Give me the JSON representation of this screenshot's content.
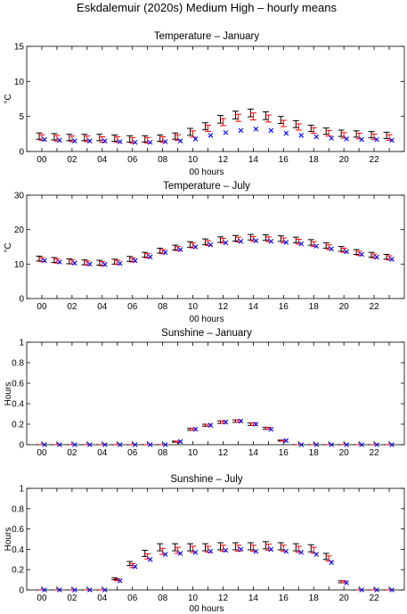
{
  "figure_title": "Eskdalemuir (2020s) Medium High – hourly means",
  "colors": {
    "series_black": "#000000",
    "series_red": "#ff0000",
    "series_blue": "#0000ff"
  },
  "chart_data": [
    {
      "type": "scatter",
      "title": "Temperature – January",
      "xlabel": "00 hours",
      "ylabel": "°C",
      "ylim": [
        0,
        15
      ],
      "yticks": [
        0,
        5,
        10,
        15
      ],
      "xlim": [
        -1,
        24
      ],
      "xticks": [
        "00",
        "02",
        "04",
        "06",
        "08",
        "10",
        "12",
        "14",
        "16",
        "18",
        "20",
        "22"
      ],
      "x": [
        0,
        1,
        2,
        3,
        4,
        5,
        6,
        7,
        8,
        9,
        10,
        11,
        12,
        13,
        14,
        15,
        16,
        17,
        18,
        19,
        20,
        21,
        22,
        23
      ],
      "series": [
        {
          "marker": "errorbar",
          "color": "#000000",
          "values": [
            2.2,
            2.1,
            2.0,
            2.0,
            2.0,
            1.9,
            1.8,
            1.8,
            1.9,
            2.2,
            2.8,
            3.6,
            4.6,
            5.2,
            5.5,
            5.1,
            4.5,
            3.9,
            3.3,
            2.9,
            2.6,
            2.5,
            2.4,
            2.3
          ],
          "error": [
            0.45,
            0.45,
            0.45,
            0.45,
            0.45,
            0.45,
            0.45,
            0.45,
            0.45,
            0.45,
            0.5,
            0.5,
            0.55,
            0.55,
            0.55,
            0.55,
            0.5,
            0.5,
            0.45,
            0.45,
            0.45,
            0.45,
            0.45,
            0.45
          ]
        },
        {
          "marker": "errorbar",
          "color": "#ff0000",
          "values": [
            2.0,
            1.9,
            1.8,
            1.8,
            1.7,
            1.7,
            1.6,
            1.6,
            1.7,
            2.0,
            2.5,
            3.3,
            4.2,
            4.8,
            5.0,
            4.7,
            4.0,
            3.5,
            3.0,
            2.6,
            2.3,
            2.2,
            2.1,
            2.0
          ],
          "error": [
            0.4,
            0.4,
            0.4,
            0.4,
            0.4,
            0.4,
            0.4,
            0.4,
            0.4,
            0.4,
            0.45,
            0.45,
            0.5,
            0.5,
            0.5,
            0.5,
            0.45,
            0.45,
            0.4,
            0.4,
            0.4,
            0.4,
            0.4,
            0.4
          ]
        },
        {
          "marker": "x",
          "color": "#0000ff",
          "values": [
            1.7,
            1.6,
            1.5,
            1.5,
            1.5,
            1.4,
            1.3,
            1.3,
            1.4,
            1.5,
            1.8,
            2.3,
            2.7,
            3.0,
            3.2,
            3.0,
            2.6,
            2.3,
            2.1,
            1.9,
            1.8,
            1.7,
            1.7,
            1.6
          ]
        }
      ]
    },
    {
      "type": "scatter",
      "title": "Temperature – July",
      "xlabel": "00 hours",
      "ylabel": "°C",
      "ylim": [
        0,
        30
      ],
      "yticks": [
        0,
        10,
        20,
        30
      ],
      "xlim": [
        -1,
        24
      ],
      "xticks": [
        "00",
        "02",
        "04",
        "06",
        "08",
        "10",
        "12",
        "14",
        "16",
        "18",
        "20",
        "22"
      ],
      "x": [
        0,
        1,
        2,
        3,
        4,
        5,
        6,
        7,
        8,
        9,
        10,
        11,
        12,
        13,
        14,
        15,
        16,
        17,
        18,
        19,
        20,
        21,
        22,
        23
      ],
      "series": [
        {
          "marker": "errorbar",
          "color": "#000000",
          "values": [
            11.6,
            11.2,
            10.8,
            10.5,
            10.4,
            10.7,
            11.5,
            12.7,
            13.9,
            14.8,
            15.7,
            16.5,
            17.1,
            17.5,
            17.8,
            17.7,
            17.4,
            17.0,
            16.3,
            15.4,
            14.4,
            13.5,
            12.7,
            12.1
          ],
          "error": [
            0.7,
            0.7,
            0.7,
            0.7,
            0.7,
            0.7,
            0.7,
            0.7,
            0.7,
            0.7,
            0.8,
            0.8,
            0.8,
            0.8,
            0.8,
            0.8,
            0.8,
            0.8,
            0.8,
            0.8,
            0.7,
            0.7,
            0.7,
            0.7
          ]
        },
        {
          "marker": "errorbar",
          "color": "#ff0000",
          "values": [
            11.3,
            10.9,
            10.6,
            10.3,
            10.1,
            10.5,
            11.2,
            12.4,
            13.6,
            14.5,
            15.4,
            16.1,
            16.8,
            17.1,
            17.3,
            17.2,
            16.9,
            16.5,
            15.8,
            14.9,
            14.0,
            13.1,
            12.3,
            11.8
          ],
          "error": [
            0.6,
            0.6,
            0.6,
            0.6,
            0.6,
            0.6,
            0.6,
            0.6,
            0.6,
            0.6,
            0.7,
            0.7,
            0.7,
            0.7,
            0.7,
            0.7,
            0.7,
            0.7,
            0.7,
            0.7,
            0.6,
            0.6,
            0.6,
            0.6
          ]
        },
        {
          "marker": "x",
          "color": "#0000ff",
          "values": [
            11.0,
            10.6,
            10.3,
            10.0,
            9.9,
            10.2,
            11.0,
            12.1,
            13.4,
            14.2,
            15.0,
            15.6,
            16.2,
            16.6,
            16.8,
            16.6,
            16.3,
            15.9,
            15.2,
            14.4,
            13.6,
            12.8,
            12.0,
            11.4
          ]
        }
      ]
    },
    {
      "type": "scatter",
      "title": "Sunshine – January",
      "xlabel": "00 hours",
      "ylabel": "Hours",
      "ylim": [
        0,
        1
      ],
      "yticks": [
        0,
        0.2,
        0.4,
        0.6,
        0.8,
        1
      ],
      "xlim": [
        -1,
        24
      ],
      "xticks": [
        "00",
        "02",
        "04",
        "06",
        "08",
        "10",
        "12",
        "14",
        "16",
        "18",
        "20",
        "22"
      ],
      "x": [
        0,
        1,
        2,
        3,
        4,
        5,
        6,
        7,
        8,
        9,
        10,
        11,
        12,
        13,
        14,
        15,
        16,
        17,
        18,
        19,
        20,
        21,
        22,
        23
      ],
      "series": [
        {
          "marker": "errorbar",
          "color": "#000000",
          "values": [
            0,
            0,
            0,
            0,
            0,
            0,
            0,
            0,
            0,
            0.03,
            0.15,
            0.19,
            0.22,
            0.23,
            0.2,
            0.16,
            0.04,
            0,
            0,
            0,
            0,
            0,
            0,
            0
          ],
          "error": [
            0,
            0,
            0,
            0,
            0,
            0,
            0,
            0,
            0,
            0.005,
            0.01,
            0.01,
            0.012,
            0.012,
            0.012,
            0.01,
            0.005,
            0,
            0,
            0,
            0,
            0,
            0,
            0
          ]
        },
        {
          "marker": "errorbar",
          "color": "#ff0000",
          "values": [
            0,
            0,
            0,
            0,
            0,
            0,
            0,
            0,
            0,
            0.03,
            0.15,
            0.19,
            0.22,
            0.23,
            0.2,
            0.16,
            0.04,
            0,
            0,
            0,
            0,
            0,
            0,
            0
          ],
          "error": [
            0,
            0,
            0,
            0,
            0,
            0,
            0,
            0,
            0,
            0.005,
            0.01,
            0.01,
            0.012,
            0.012,
            0.012,
            0.01,
            0.005,
            0,
            0,
            0,
            0,
            0,
            0,
            0
          ]
        },
        {
          "marker": "x",
          "color": "#0000ff",
          "values": [
            0,
            0,
            0,
            0,
            0,
            0,
            0,
            0,
            0,
            0.03,
            0.15,
            0.19,
            0.22,
            0.23,
            0.2,
            0.15,
            0.04,
            0,
            0,
            0,
            0,
            0,
            0,
            0
          ]
        }
      ]
    },
    {
      "type": "scatter",
      "title": "Sunshine – July",
      "xlabel": "00 hours",
      "ylabel": "Hours",
      "ylim": [
        0,
        1
      ],
      "yticks": [
        0,
        0.2,
        0.4,
        0.6,
        0.8,
        1
      ],
      "xlim": [
        -1,
        24
      ],
      "xticks": [
        "00",
        "02",
        "04",
        "06",
        "08",
        "10",
        "12",
        "14",
        "16",
        "18",
        "20",
        "22"
      ],
      "x": [
        0,
        1,
        2,
        3,
        4,
        5,
        6,
        7,
        8,
        9,
        10,
        11,
        12,
        13,
        14,
        15,
        16,
        17,
        18,
        19,
        20,
        21,
        22,
        23
      ],
      "series": [
        {
          "marker": "errorbar",
          "color": "#000000",
          "values": [
            0,
            0,
            0,
            0,
            0,
            0.11,
            0.26,
            0.36,
            0.42,
            0.42,
            0.42,
            0.42,
            0.43,
            0.43,
            0.43,
            0.44,
            0.43,
            0.42,
            0.41,
            0.33,
            0.08,
            0,
            0,
            0
          ],
          "error": [
            0,
            0,
            0,
            0,
            0,
            0.01,
            0.02,
            0.03,
            0.035,
            0.035,
            0.035,
            0.035,
            0.035,
            0.035,
            0.035,
            0.035,
            0.035,
            0.035,
            0.035,
            0.03,
            0.01,
            0,
            0,
            0
          ]
        },
        {
          "marker": "errorbar",
          "color": "#ff0000",
          "values": [
            0,
            0,
            0,
            0,
            0,
            0.1,
            0.24,
            0.33,
            0.38,
            0.39,
            0.4,
            0.4,
            0.41,
            0.41,
            0.41,
            0.42,
            0.41,
            0.4,
            0.39,
            0.31,
            0.08,
            0,
            0,
            0
          ],
          "error": [
            0,
            0,
            0,
            0,
            0,
            0.01,
            0.02,
            0.025,
            0.03,
            0.03,
            0.03,
            0.03,
            0.03,
            0.03,
            0.03,
            0.03,
            0.03,
            0.03,
            0.03,
            0.025,
            0.01,
            0,
            0,
            0
          ]
        },
        {
          "marker": "x",
          "color": "#0000ff",
          "values": [
            0,
            0,
            0,
            0,
            0,
            0.09,
            0.23,
            0.3,
            0.35,
            0.36,
            0.37,
            0.38,
            0.39,
            0.4,
            0.38,
            0.4,
            0.38,
            0.37,
            0.35,
            0.27,
            0.07,
            0,
            0,
            0
          ]
        }
      ]
    }
  ]
}
